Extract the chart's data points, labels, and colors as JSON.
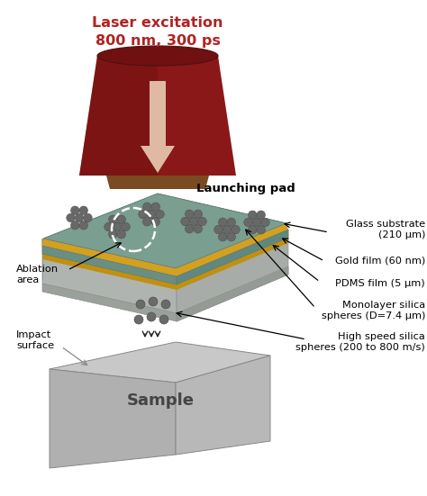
{
  "title_line1": "Laser excitation",
  "title_line2": "800 nm, 300 ps",
  "title_color": "#b22222",
  "background_color": "#ffffff",
  "labels": {
    "launching_pad": "Launching pad",
    "glass_substrate": "Glass substrate\n(210 μm)",
    "gold_film": "Gold film (60 nm)",
    "pdms_film": "PDMS film (5 μm)",
    "monolayer": "Monolayer silica\nspheres (D=7.4 μm)",
    "high_speed": "High speed silica\nspheres (200 to 800 m/s)",
    "ablation_area": "Ablation\narea",
    "impact_surface": "Impact\nsurface",
    "sample": "Sample"
  },
  "colors": {
    "cone_dark": "#8b1818",
    "cone_shadow": "#6b1010",
    "cone_arrow": "#e8c8b0",
    "pad_top": "#7a9e90",
    "pad_gold": "#d4a020",
    "pad_gold_side": "#c09010",
    "pad_gray_top": "#c8ccc8",
    "pad_gray_side": "#b0b4b0",
    "pad_bottom_face": "#90aaa4",
    "pad_bottom_side": "#7a9490",
    "sample_top": "#c8c8c8",
    "sample_left": "#b0b0b0",
    "sample_right": "#b8b8b8",
    "sphere_color": "#686868",
    "sphere_shadow": "#505050"
  }
}
